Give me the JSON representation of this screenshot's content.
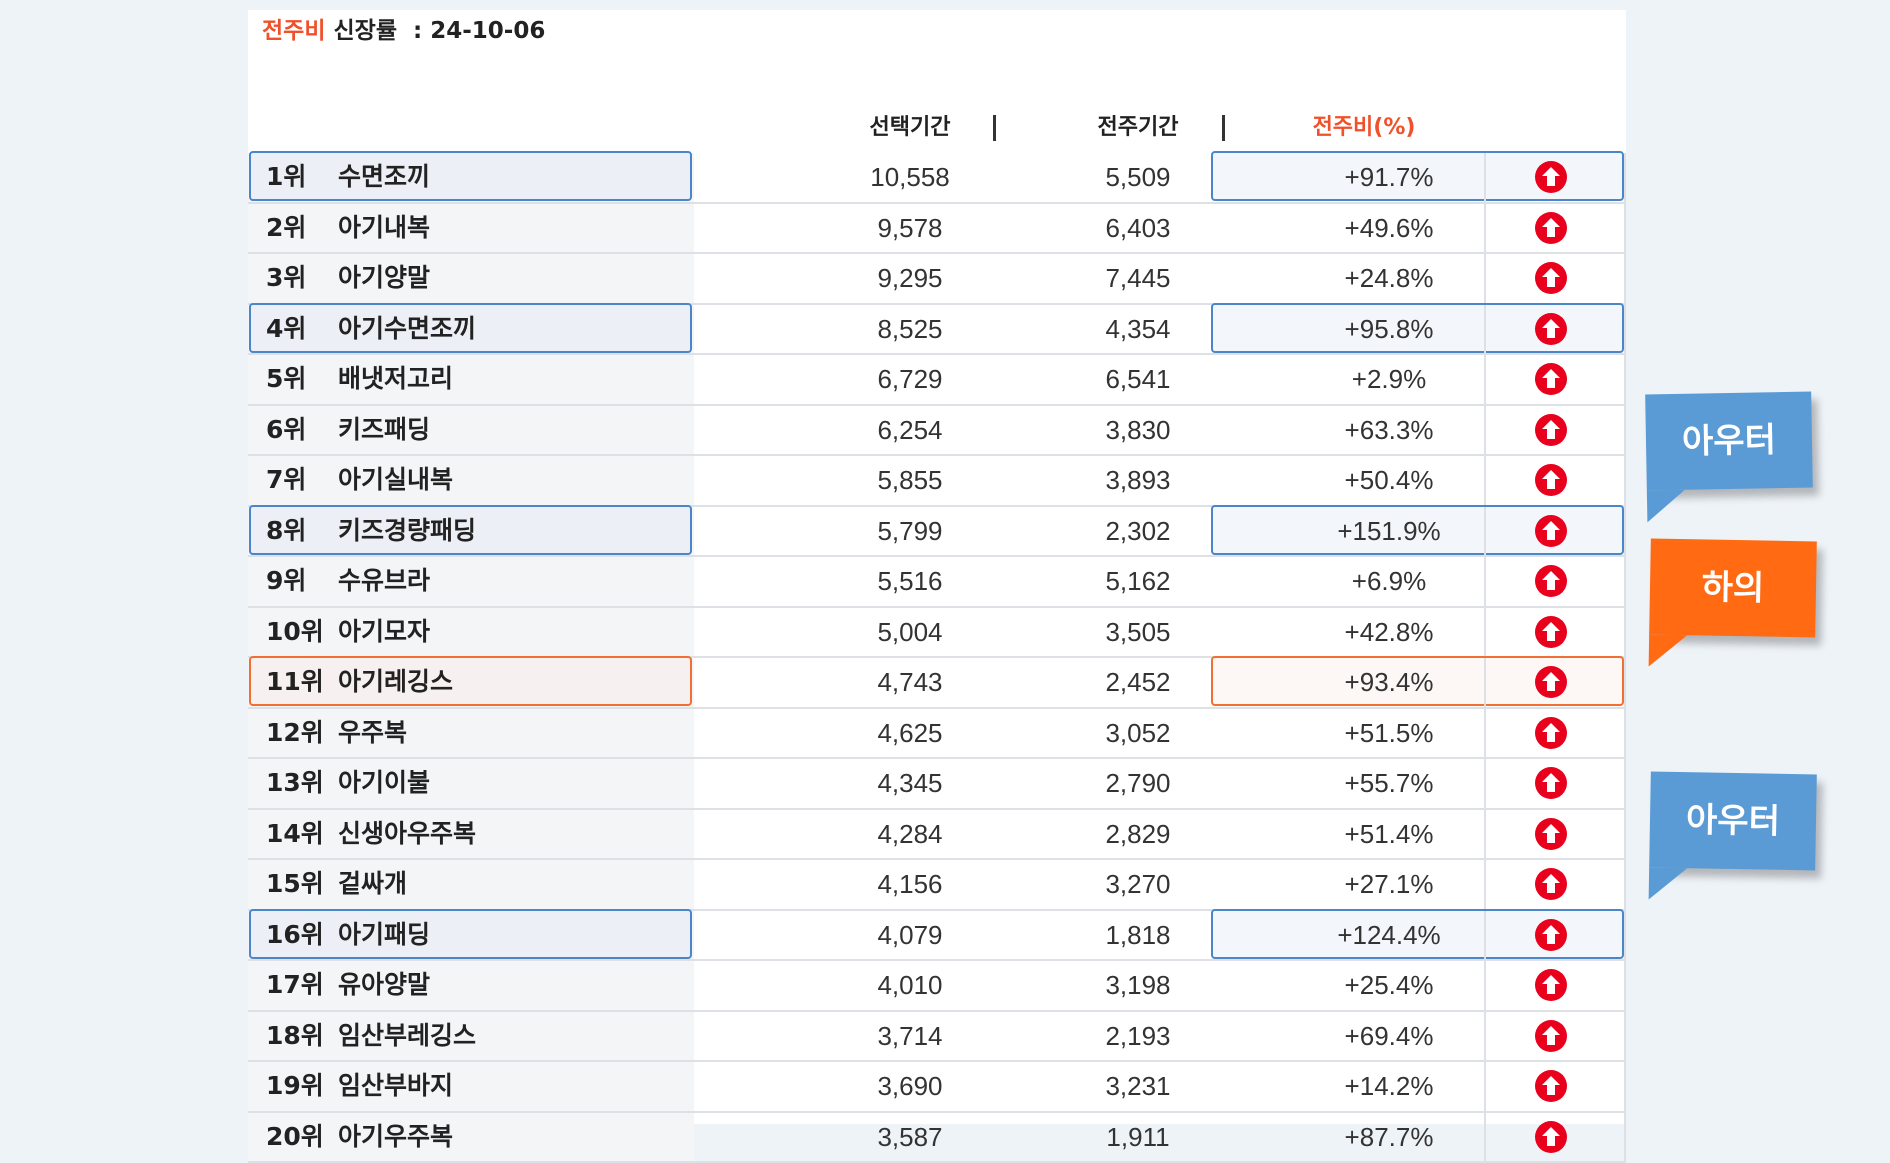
{
  "title": {
    "accent": "전주비",
    "rest": "신장률",
    "colon": ":",
    "date": "24-10-06"
  },
  "header": {
    "selected": "선택기간",
    "previous": "전주기간",
    "wow": "전주비(%)"
  },
  "colors": {
    "accent": "#f0502a",
    "highlight_blue": "#4a86c8",
    "highlight_orange": "#f07033",
    "arrow_red": "#e8001c"
  },
  "rows": [
    {
      "rank": "1위",
      "name": "수면조끼",
      "sel": "10,558",
      "prev": "5,509",
      "wow": "+91.7%",
      "hl": "blue",
      "icon": "arrow-up-circle-icon"
    },
    {
      "rank": "2위",
      "name": "아기내복",
      "sel": "9,578",
      "prev": "6,403",
      "wow": "+49.6%",
      "hl": "",
      "icon": "arrow-up-circle-icon"
    },
    {
      "rank": "3위",
      "name": "아기양말",
      "sel": "9,295",
      "prev": "7,445",
      "wow": "+24.8%",
      "hl": "",
      "icon": "arrow-up-circle-icon"
    },
    {
      "rank": "4위",
      "name": "아기수면조끼",
      "sel": "8,525",
      "prev": "4,354",
      "wow": "+95.8%",
      "hl": "blue",
      "icon": "arrow-up-circle-icon"
    },
    {
      "rank": "5위",
      "name": "배냇저고리",
      "sel": "6,729",
      "prev": "6,541",
      "wow": "+2.9%",
      "hl": "",
      "icon": "arrow-up-circle-icon"
    },
    {
      "rank": "6위",
      "name": "키즈패딩",
      "sel": "6,254",
      "prev": "3,830",
      "wow": "+63.3%",
      "hl": "",
      "icon": "arrow-up-circle-icon"
    },
    {
      "rank": "7위",
      "name": "아기실내복",
      "sel": "5,855",
      "prev": "3,893",
      "wow": "+50.4%",
      "hl": "",
      "icon": "arrow-up-circle-icon"
    },
    {
      "rank": "8위",
      "name": "키즈경량패딩",
      "sel": "5,799",
      "prev": "2,302",
      "wow": "+151.9%",
      "hl": "blue",
      "icon": "arrow-up-circle-icon"
    },
    {
      "rank": "9위",
      "name": "수유브라",
      "sel": "5,516",
      "prev": "5,162",
      "wow": "+6.9%",
      "hl": "",
      "icon": "arrow-up-circle-icon"
    },
    {
      "rank": "10위",
      "name": "아기모자",
      "sel": "5,004",
      "prev": "3,505",
      "wow": "+42.8%",
      "hl": "",
      "icon": "arrow-up-circle-icon"
    },
    {
      "rank": "11위",
      "name": "아기레깅스",
      "sel": "4,743",
      "prev": "2,452",
      "wow": "+93.4%",
      "hl": "orange",
      "icon": "arrow-up-circle-icon"
    },
    {
      "rank": "12위",
      "name": "우주복",
      "sel": "4,625",
      "prev": "3,052",
      "wow": "+51.5%",
      "hl": "",
      "icon": "arrow-up-circle-icon"
    },
    {
      "rank": "13위",
      "name": "아기이불",
      "sel": "4,345",
      "prev": "2,790",
      "wow": "+55.7%",
      "hl": "",
      "icon": "arrow-up-circle-icon"
    },
    {
      "rank": "14위",
      "name": "신생아우주복",
      "sel": "4,284",
      "prev": "2,829",
      "wow": "+51.4%",
      "hl": "",
      "icon": "arrow-up-circle-icon"
    },
    {
      "rank": "15위",
      "name": "겉싸개",
      "sel": "4,156",
      "prev": "3,270",
      "wow": "+27.1%",
      "hl": "",
      "icon": "arrow-up-circle-icon"
    },
    {
      "rank": "16위",
      "name": "아기패딩",
      "sel": "4,079",
      "prev": "1,818",
      "wow": "+124.4%",
      "hl": "blue",
      "icon": "arrow-up-circle-icon"
    },
    {
      "rank": "17위",
      "name": "유아양말",
      "sel": "4,010",
      "prev": "3,198",
      "wow": "+25.4%",
      "hl": "",
      "icon": "arrow-up-circle-icon"
    },
    {
      "rank": "18위",
      "name": "임산부레깅스",
      "sel": "3,714",
      "prev": "2,193",
      "wow": "+69.4%",
      "hl": "",
      "icon": "arrow-up-circle-icon"
    },
    {
      "rank": "19위",
      "name": "임산부바지",
      "sel": "3,690",
      "prev": "3,231",
      "wow": "+14.2%",
      "hl": "",
      "icon": "arrow-up-circle-icon"
    },
    {
      "rank": "20위",
      "name": "아기우주복",
      "sel": "3,587",
      "prev": "1,911",
      "wow": "+87.7%",
      "hl": "",
      "icon": "arrow-up-circle-icon"
    }
  ],
  "callouts": [
    {
      "label": "아우터",
      "color": "blue"
    },
    {
      "label": "하의",
      "color": "orange"
    },
    {
      "label": "아우터",
      "color": "blue"
    }
  ]
}
